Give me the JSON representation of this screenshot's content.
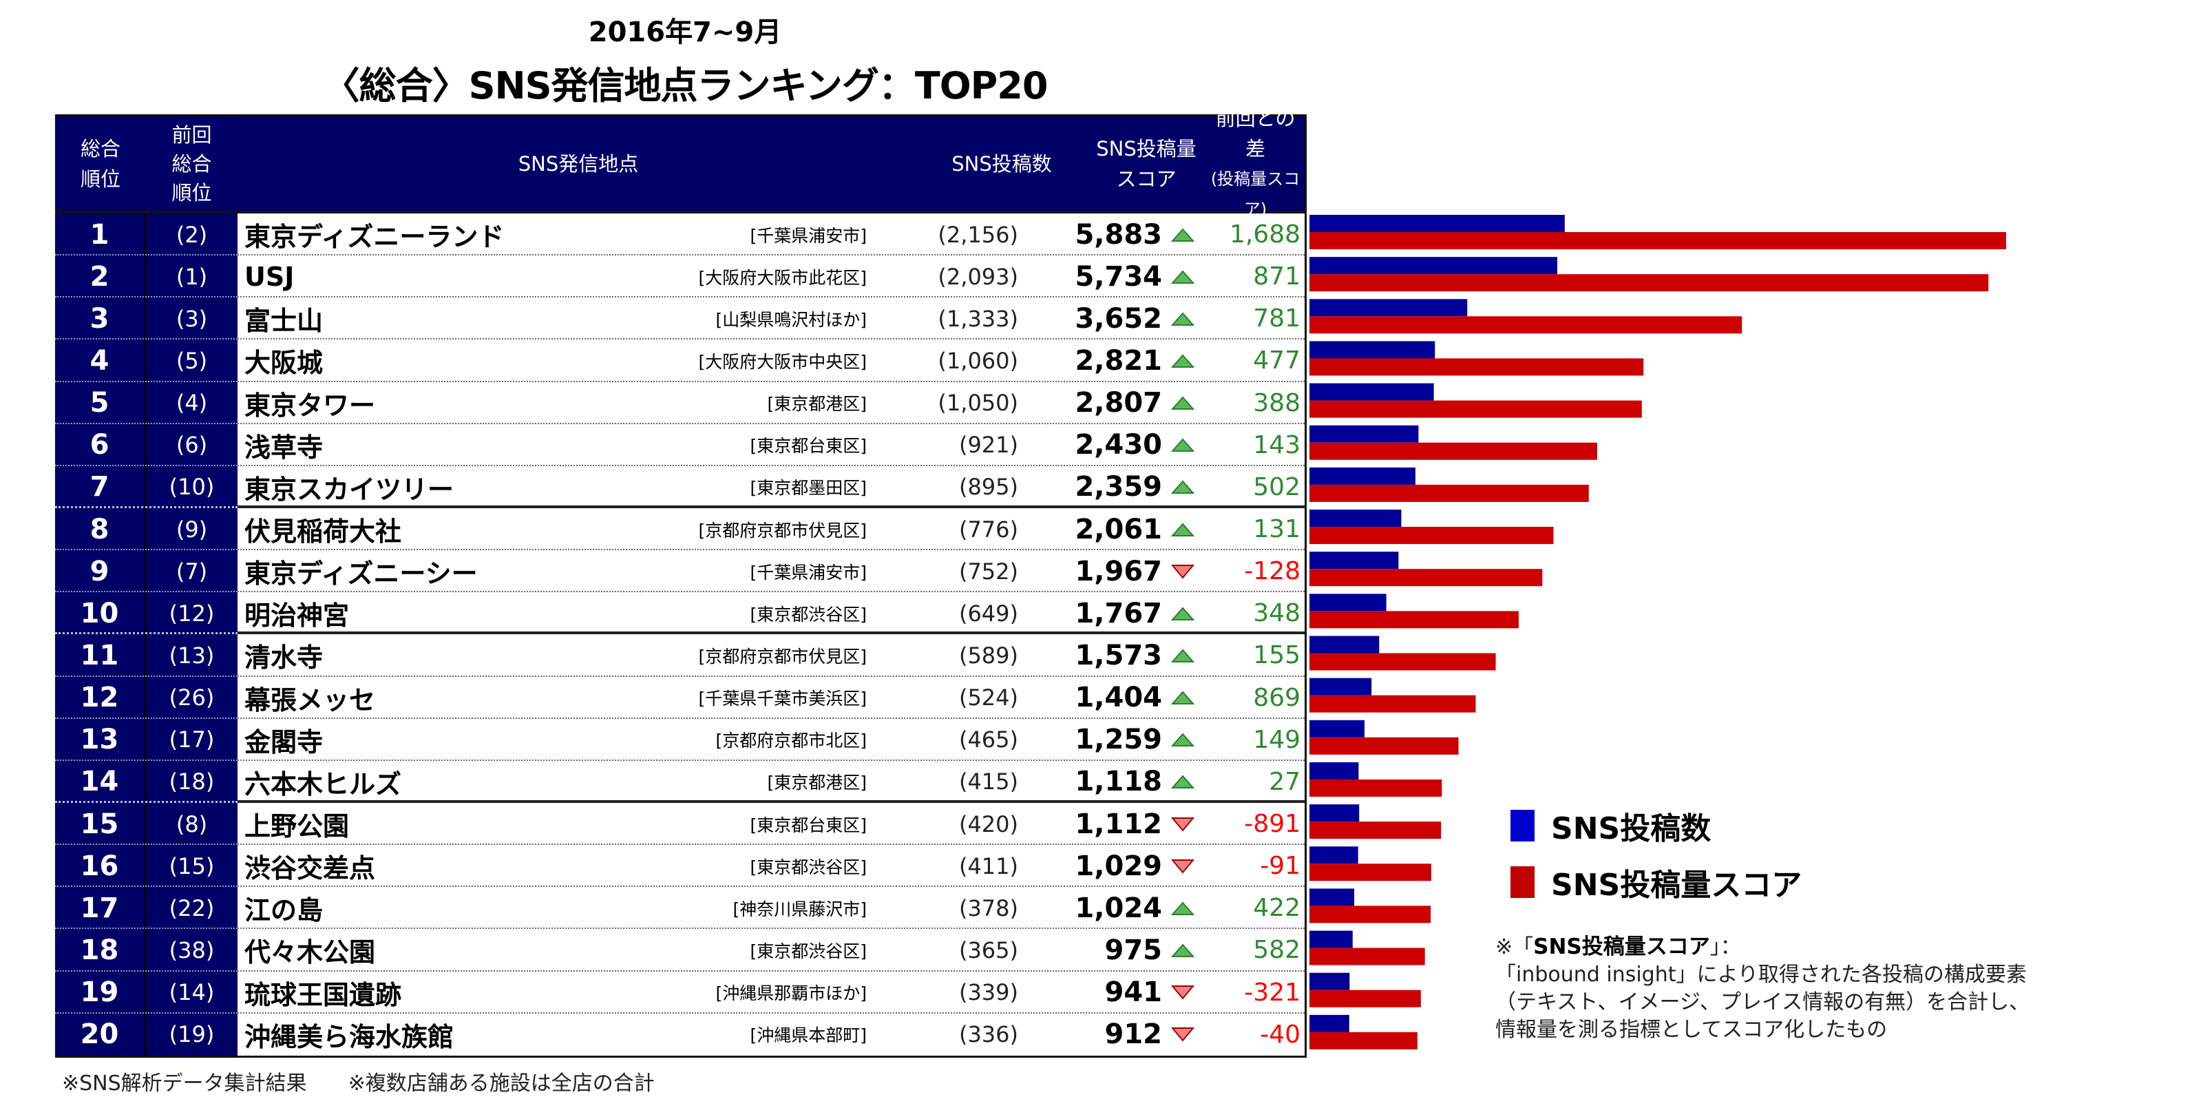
{
  "header": {
    "period": "2016年7~9月",
    "title": "〈総合〉SNS発信地点ランキング：TOP20"
  },
  "table": {
    "columns": {
      "rank": [
        "総合",
        "順位"
      ],
      "prev": [
        "前回",
        "総合",
        "順位"
      ],
      "place": "SNS発信地点",
      "count": "SNS投稿数",
      "score": [
        "SNS投稿量",
        "スコア"
      ],
      "diff": [
        "前回との差",
        "(投稿量スコア)"
      ]
    },
    "rows": [
      {
        "rank": "1",
        "prev": "(2)",
        "name": "東京ディズニーランド",
        "location": "[千葉県浦安市]",
        "count": "(2,156)",
        "score": "5,883",
        "trend": "up",
        "diff": "1,688"
      },
      {
        "rank": "2",
        "prev": "(1)",
        "name": "USJ",
        "location": "[大阪府大阪市此花区]",
        "count": "(2,093)",
        "score": "5,734",
        "trend": "up",
        "diff": "871"
      },
      {
        "rank": "3",
        "prev": "(3)",
        "name": "富士山",
        "location": "[山梨県鳴沢村ほか]",
        "count": "(1,333)",
        "score": "3,652",
        "trend": "up",
        "diff": "781"
      },
      {
        "rank": "4",
        "prev": "(5)",
        "name": "大阪城",
        "location": "[大阪府大阪市中央区]",
        "count": "(1,060)",
        "score": "2,821",
        "trend": "up",
        "diff": "477"
      },
      {
        "rank": "5",
        "prev": "(4)",
        "name": "東京タワー",
        "location": "[東京都港区]",
        "count": "(1,050)",
        "score": "2,807",
        "trend": "up",
        "diff": "388"
      },
      {
        "rank": "6",
        "prev": "(6)",
        "name": "浅草寺",
        "location": "[東京都台東区]",
        "count": "(921)",
        "score": "2,430",
        "trend": "up",
        "diff": "143"
      },
      {
        "rank": "7",
        "prev": "(10)",
        "name": "東京スカイツリー",
        "location": "[東京都墨田区]",
        "count": "(895)",
        "score": "2,359",
        "trend": "up",
        "diff": "502"
      },
      {
        "rank": "8",
        "prev": "(9)",
        "name": "伏見稲荷大社",
        "location": "[京都府京都市伏見区]",
        "count": "(776)",
        "score": "2,061",
        "trend": "up",
        "diff": "131"
      },
      {
        "rank": "9",
        "prev": "(7)",
        "name": "東京ディズニーシー",
        "location": "[千葉県浦安市]",
        "count": "(752)",
        "score": "1,967",
        "trend": "down",
        "diff": "-128"
      },
      {
        "rank": "10",
        "prev": "(12)",
        "name": "明治神宮",
        "location": "[東京都渋谷区]",
        "count": "(649)",
        "score": "1,767",
        "trend": "up",
        "diff": "348"
      },
      {
        "rank": "11",
        "prev": "(13)",
        "name": "清水寺",
        "location": "[京都府京都市伏見区]",
        "count": "(589)",
        "score": "1,573",
        "trend": "up",
        "diff": "155"
      },
      {
        "rank": "12",
        "prev": "(26)",
        "name": "幕張メッセ",
        "location": "[千葉県千葉市美浜区]",
        "count": "(524)",
        "score": "1,404",
        "trend": "up",
        "diff": "869"
      },
      {
        "rank": "13",
        "prev": "(17)",
        "name": "金閣寺",
        "location": "[京都府京都市北区]",
        "count": "(465)",
        "score": "1,259",
        "trend": "up",
        "diff": "149"
      },
      {
        "rank": "14",
        "prev": "(18)",
        "name": "六本木ヒルズ",
        "location": "[東京都港区]",
        "count": "(415)",
        "score": "1,118",
        "trend": "up",
        "diff": "27"
      },
      {
        "rank": "15",
        "prev": "(8)",
        "name": "上野公園",
        "location": "[東京都台東区]",
        "count": "(420)",
        "score": "1,112",
        "trend": "down",
        "diff": "-891"
      },
      {
        "rank": "16",
        "prev": "(15)",
        "name": "渋谷交差点",
        "location": "[東京都渋谷区]",
        "count": "(411)",
        "score": "1,029",
        "trend": "down",
        "diff": "-91"
      },
      {
        "rank": "17",
        "prev": "(22)",
        "name": "江の島",
        "location": "[神奈川県藤沢市]",
        "count": "(378)",
        "score": "1,024",
        "trend": "up",
        "diff": "422"
      },
      {
        "rank": "18",
        "prev": "(38)",
        "name": "代々木公園",
        "location": "[東京都渋谷区]",
        "count": "(365)",
        "score": "975",
        "trend": "up",
        "diff": "582"
      },
      {
        "rank": "19",
        "prev": "(14)",
        "name": "琉球王国遺跡",
        "location": "[沖縄県那覇市ほか]",
        "count": "(339)",
        "score": "941",
        "trend": "down",
        "diff": "-321"
      },
      {
        "rank": "20",
        "prev": "(19)",
        "name": "沖縄美ら海水族館",
        "location": "[沖縄県本部町]",
        "count": "(336)",
        "score": "912",
        "trend": "down",
        "diff": "-40"
      }
    ],
    "group_breaks_after_rank": [
      7,
      10,
      14
    ]
  },
  "colors": {
    "header_bg": "#000066",
    "bar_count": "#000099",
    "bar_score": "#cc0000",
    "legend_count": "#0000cc",
    "legend_score": "#c00000",
    "up_text": "#2e8b2e",
    "down_text": "#ff0000",
    "up_icon": "#5cb85c",
    "down_icon": "#f08080"
  },
  "legend": {
    "items": [
      {
        "label": "SNS投稿数",
        "color_key": "legend_count"
      },
      {
        "label": "SNS投稿量スコア",
        "color_key": "legend_score"
      }
    ]
  },
  "note": {
    "prefix": "※「",
    "head": "SNS投稿量スコア",
    "suffix": "」：",
    "lines": [
      "「inbound insight」により取得された各投稿の構成要素",
      "（テキスト、イメージ、プレイス情報の有無）を合計し、",
      "情報量を測る指標としてスコア化したもの"
    ]
  },
  "footer": {
    "note1": "※SNS解析データ集計結果",
    "note2": "※複数店舗ある施設は全店の合計"
  },
  "chart_data": {
    "type": "bar",
    "orientation": "horizontal",
    "title": "〈総合〉SNS発信地点ランキング：TOP20",
    "subtitle": "2016年7~9月",
    "categories": [
      "東京ディズニーランド",
      "USJ",
      "富士山",
      "大阪城",
      "東京タワー",
      "浅草寺",
      "東京スカイツリー",
      "伏見稲荷大社",
      "東京ディズニーシー",
      "明治神宮",
      "清水寺",
      "幕張メッセ",
      "金閣寺",
      "六本木ヒルズ",
      "上野公園",
      "渋谷交差点",
      "江の島",
      "代々木公園",
      "琉球王国遺跡",
      "沖縄美ら海水族館"
    ],
    "series": [
      {
        "name": "SNS投稿数",
        "values": [
          2156,
          2093,
          1333,
          1060,
          1050,
          921,
          895,
          776,
          752,
          649,
          589,
          524,
          465,
          415,
          420,
          411,
          378,
          365,
          339,
          336
        ]
      },
      {
        "name": "SNS投稿量スコア",
        "values": [
          5883,
          5734,
          3652,
          2821,
          2807,
          2430,
          2359,
          2061,
          1967,
          1767,
          1573,
          1404,
          1259,
          1118,
          1112,
          1029,
          1024,
          975,
          941,
          912
        ]
      }
    ],
    "xlim": [
      0,
      6400
    ],
    "grid": false,
    "legend_position": "bottom-right",
    "xlabel": "",
    "ylabel": ""
  }
}
